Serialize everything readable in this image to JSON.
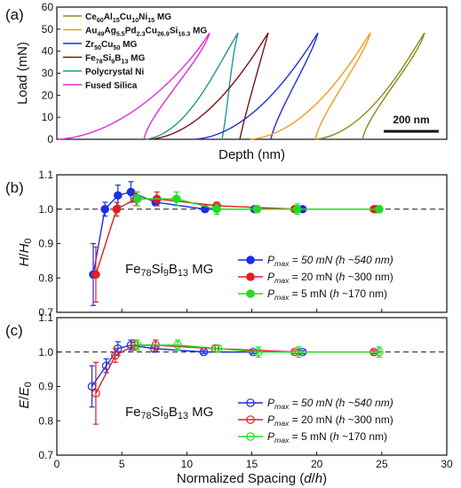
{
  "chart_data": [
    {
      "type": "line",
      "panel_label": "(a)",
      "xlabel": "Depth (nm)",
      "ylabel": "Load (mN)",
      "ylim": [
        0,
        60
      ],
      "y_ticks": [
        "0",
        "10",
        "20",
        "30",
        "40",
        "50",
        "60"
      ],
      "scale_bar_label": "200 nm",
      "legend": {
        "placement": "top-left",
        "entries": [
          {
            "parts": [
              [
                "Ce",
                ""
              ],
              [
                "60",
                "sub"
              ],
              [
                "Al",
                ""
              ],
              [
                "15",
                "sub"
              ],
              [
                "Cu",
                ""
              ],
              [
                "10",
                "sub"
              ],
              [
                "Ni",
                ""
              ],
              [
                "15",
                "sub"
              ],
              [
                " MG",
                ""
              ]
            ],
            "color": "#8b8b1a"
          },
          {
            "parts": [
              [
                "Au",
                ""
              ],
              [
                "49",
                "sub"
              ],
              [
                "Ag",
                ""
              ],
              [
                "5.5",
                "sub"
              ],
              [
                "Pd",
                ""
              ],
              [
                "2.3",
                "sub"
              ],
              [
                "Cu",
                ""
              ],
              [
                "26.9",
                "sub"
              ],
              [
                "Si",
                ""
              ],
              [
                "16.3",
                "sub"
              ],
              [
                " MG",
                ""
              ]
            ],
            "color": "#f39c1c"
          },
          {
            "parts": [
              [
                "Zr",
                ""
              ],
              [
                "50",
                "sub"
              ],
              [
                "Cu",
                ""
              ],
              [
                "50",
                "sub"
              ],
              [
                " MG",
                ""
              ]
            ],
            "color": "#1f2fd6"
          },
          {
            "parts": [
              [
                "Fe",
                ""
              ],
              [
                "78",
                "sub"
              ],
              [
                "Si",
                ""
              ],
              [
                "9",
                "sub"
              ],
              [
                "B",
                ""
              ],
              [
                "13",
                "sub"
              ],
              [
                " MG",
                ""
              ]
            ],
            "color": "#7a1416"
          },
          {
            "parts": [
              [
                "Polycrystal Ni",
                ""
              ]
            ],
            "color": "#1a9a96"
          },
          {
            "parts": [
              [
                "Fused Silica",
                ""
              ]
            ],
            "color": "#e82ad8"
          }
        ]
      },
      "series_color_order": [
        "#e82ad8",
        "#1a9a96",
        "#7a1416",
        "#1f2fd6",
        "#f39c1c",
        "#8b8b1a"
      ]
    },
    {
      "type": "line",
      "panel_label": "(b)",
      "xlabel": "",
      "ylabel_parts": [
        [
          "H",
          "i"
        ],
        [
          "/",
          ""
        ],
        [
          "H",
          "i"
        ],
        [
          "0",
          "sub"
        ]
      ],
      "xlim": [
        0,
        30
      ],
      "ylim": [
        0.7,
        1.1
      ],
      "y_ticks": [
        0.7,
        0.8,
        0.9,
        1.0,
        1.1
      ],
      "reference_line": 1.0,
      "annotation_parts": [
        [
          "Fe",
          ""
        ],
        [
          "78",
          "sub"
        ],
        [
          "Si",
          ""
        ],
        [
          "9",
          "sub"
        ],
        [
          "B",
          ""
        ],
        [
          "13",
          "sub"
        ],
        [
          " MG",
          ""
        ]
      ],
      "marker": "filled-circle",
      "legend_placement": "bottom-right",
      "series": [
        {
          "label_parts": [
            [
              "P",
              "i"
            ],
            [
              "max",
              "isub"
            ],
            [
              " = 50 mN (",
              "i"
            ],
            [
              "h",
              "i"
            ],
            [
              " ~540 nm)",
              "i"
            ]
          ],
          "color": "#1a2fe0",
          "x": [
            2.8,
            3.7,
            4.7,
            5.7,
            7.6,
            11.4,
            15.2,
            18.9,
            24.6
          ],
          "y": [
            0.81,
            1.0,
            1.04,
            1.05,
            1.02,
            1.0,
            1.0,
            1.0,
            1.0
          ],
          "err": [
            0.09,
            0.02,
            0.03,
            0.03,
            0.01,
            0.005,
            0.005,
            0.005,
            0.005
          ]
        },
        {
          "label_parts": [
            [
              "P",
              "i"
            ],
            [
              "max",
              "isub"
            ],
            [
              " = 20 mN (",
              ""
            ],
            [
              "h",
              "i"
            ],
            [
              " ~300 nm)",
              ""
            ]
          ],
          "color": "#e02020",
          "x": [
            3.0,
            4.6,
            6.1,
            7.7,
            12.3,
            18.3,
            24.4
          ],
          "y": [
            0.81,
            1.0,
            1.03,
            1.03,
            1.01,
            1.0,
            1.0
          ],
          "err": [
            0.08,
            0.02,
            0.02,
            0.02,
            0.01,
            0.005,
            0.005
          ]
        },
        {
          "label_parts": [
            [
              "P",
              "i"
            ],
            [
              "max",
              "isub"
            ],
            [
              " = 5 mN (",
              ""
            ],
            [
              "h",
              "i"
            ],
            [
              " ~170 nm)",
              ""
            ]
          ],
          "color": "#22dd22",
          "x": [
            6.2,
            9.2,
            12.3,
            15.4,
            18.5,
            24.8
          ],
          "y": [
            1.03,
            1.03,
            1.0,
            1.0,
            1.0,
            1.0
          ],
          "err": [
            0.02,
            0.02,
            0.015,
            0.01,
            0.015,
            0.01
          ]
        }
      ]
    },
    {
      "type": "line",
      "panel_label": "(c)",
      "xlabel_parts": [
        [
          "Normalized Spacing (",
          ""
        ],
        [
          "d",
          "i"
        ],
        [
          "/",
          ""
        ],
        [
          "h",
          "i"
        ],
        [
          ")",
          ""
        ]
      ],
      "ylabel_parts": [
        [
          "E",
          "i"
        ],
        [
          "/",
          ""
        ],
        [
          "E",
          "i"
        ],
        [
          "0",
          "sub"
        ]
      ],
      "xlim": [
        0,
        30
      ],
      "x_ticks": [
        0,
        5,
        10,
        15,
        20,
        25,
        30
      ],
      "ylim": [
        0.7,
        1.1
      ],
      "y_ticks": [
        0.7,
        0.8,
        0.9,
        1.0,
        1.1
      ],
      "reference_line": 1.0,
      "annotation_parts": [
        [
          "Fe",
          ""
        ],
        [
          "78",
          "sub"
        ],
        [
          "Si",
          ""
        ],
        [
          "9",
          "sub"
        ],
        [
          "B",
          ""
        ],
        [
          "13",
          "sub"
        ],
        [
          " MG",
          ""
        ]
      ],
      "marker": "open-circle",
      "legend_placement": "bottom-right",
      "series": [
        {
          "label_parts": [
            [
              "P",
              "i"
            ],
            [
              "max",
              "isub"
            ],
            [
              " = 50 mN (",
              "i"
            ],
            [
              "h",
              "i"
            ],
            [
              " ~540 nm)",
              "i"
            ]
          ],
          "color": "#1a2fe0",
          "x": [
            2.7,
            3.8,
            4.7,
            5.7,
            7.5,
            11.3,
            15.1,
            18.9,
            24.4
          ],
          "y": [
            0.9,
            0.96,
            1.01,
            1.02,
            1.01,
            1.0,
            1.0,
            1.0,
            1.0
          ],
          "err": [
            0.06,
            0.02,
            0.02,
            0.015,
            0.01,
            0.005,
            0.005,
            0.005,
            0.005
          ]
        },
        {
          "label_parts": [
            [
              "P",
              "i"
            ],
            [
              "max",
              "isub"
            ],
            [
              " = 20 mN (",
              ""
            ],
            [
              "h",
              "i"
            ],
            [
              " ~300 nm)",
              ""
            ]
          ],
          "color": "#e02020",
          "x": [
            3.0,
            4.5,
            6.0,
            7.6,
            12.2,
            18.3,
            24.4
          ],
          "y": [
            0.88,
            0.99,
            1.02,
            1.02,
            1.01,
            1.0,
            1.0
          ],
          "err": [
            0.09,
            0.02,
            0.015,
            0.015,
            0.01,
            0.005,
            0.005
          ]
        },
        {
          "label_parts": [
            [
              "P",
              "i"
            ],
            [
              "max",
              "isub"
            ],
            [
              " = 5 mN (",
              ""
            ],
            [
              "h",
              "i"
            ],
            [
              " ~170 nm)",
              ""
            ]
          ],
          "color": "#22dd22",
          "x": [
            6.2,
            9.3,
            12.4,
            15.5,
            18.6,
            24.8
          ],
          "y": [
            1.02,
            1.02,
            1.01,
            1.0,
            1.0,
            1.0
          ],
          "err": [
            0.015,
            0.015,
            0.01,
            0.015,
            0.015,
            0.015
          ]
        }
      ]
    }
  ]
}
